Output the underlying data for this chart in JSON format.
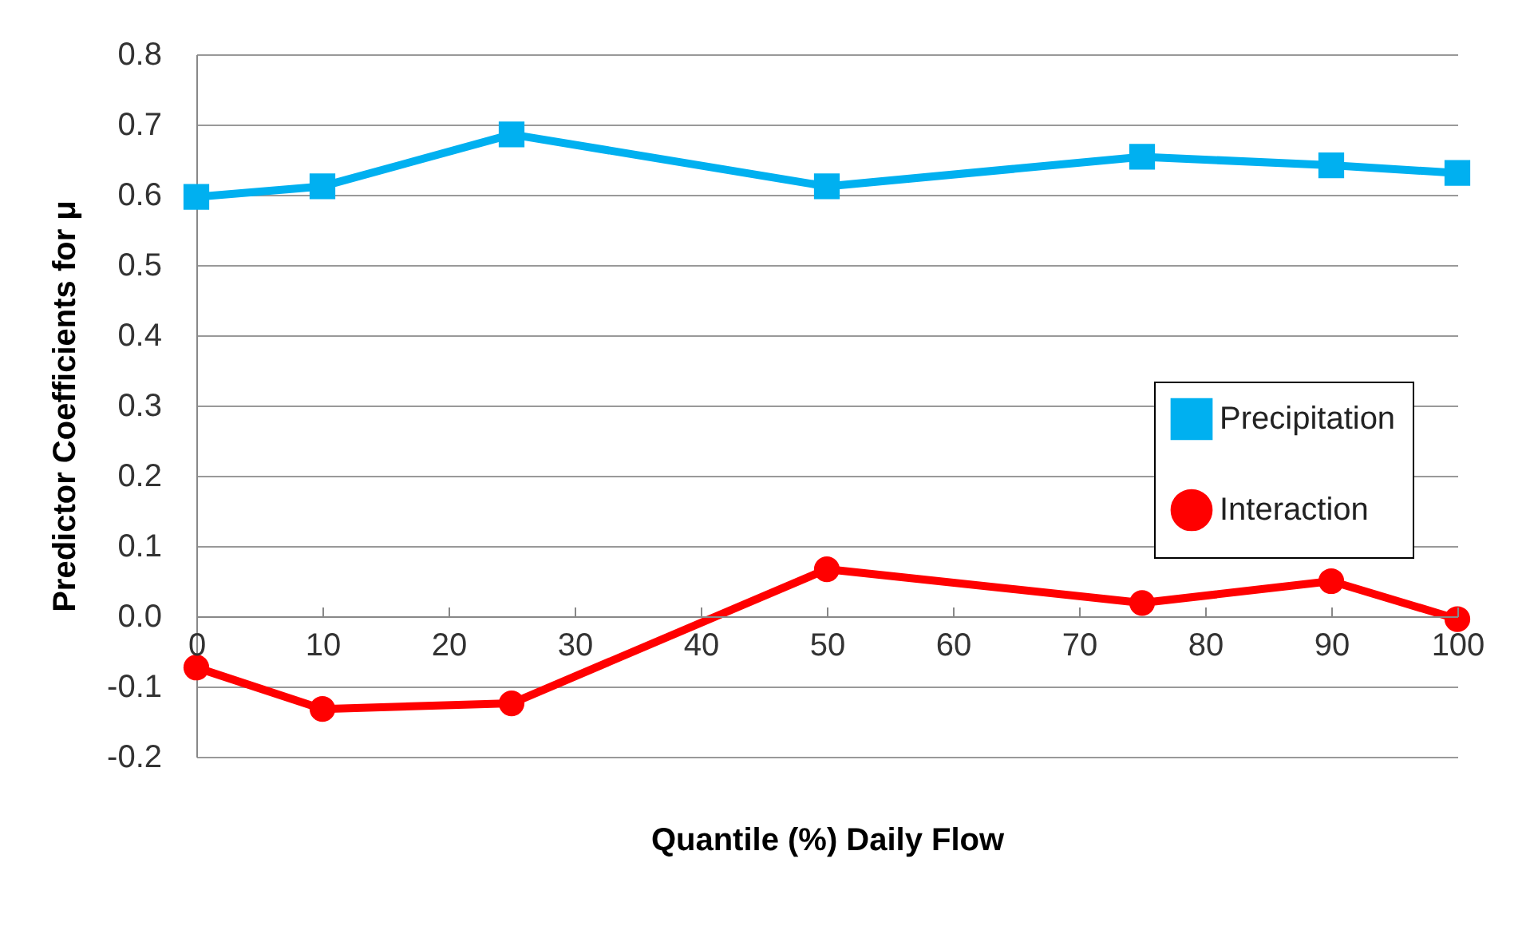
{
  "chart_data": {
    "type": "line",
    "xlabel": "Quantile (%) Daily Flow",
    "ylabel": "Predictor Coefficients for μ",
    "x": [
      0,
      10,
      25,
      50,
      75,
      90,
      100
    ],
    "series": [
      {
        "name": "Precipitation",
        "color": "#00b0f0",
        "marker": "square",
        "values": [
          0.597,
          0.612,
          0.686,
          0.612,
          0.654,
          0.642,
          0.631
        ]
      },
      {
        "name": "Interaction",
        "color": "#ff0000",
        "marker": "circle",
        "values": [
          -0.073,
          -0.132,
          -0.124,
          0.067,
          0.019,
          0.05,
          -0.004
        ]
      }
    ],
    "xlim": [
      0,
      100
    ],
    "xticks": [
      0,
      10,
      20,
      30,
      40,
      50,
      60,
      70,
      80,
      90,
      100
    ],
    "ylim": [
      -0.2,
      0.8
    ],
    "yticks": [
      {
        "value": -0.2,
        "label": "-0.2"
      },
      {
        "value": -0.1,
        "label": "-0.1"
      },
      {
        "value": 0,
        "label": "0.0"
      },
      {
        "value": 0.1,
        "label": "0.1"
      },
      {
        "value": 0.2,
        "label": "0.2"
      },
      {
        "value": 0.3,
        "label": "0.3"
      },
      {
        "value": 0.4,
        "label": "0.4"
      },
      {
        "value": 0.5,
        "label": "0.5"
      },
      {
        "value": 0.6,
        "label": "0.6"
      },
      {
        "value": 0.7,
        "label": "0.7"
      },
      {
        "value": 0.8,
        "label": "0.8"
      }
    ],
    "grid": "y",
    "legend": "right",
    "line_style": "solid"
  }
}
